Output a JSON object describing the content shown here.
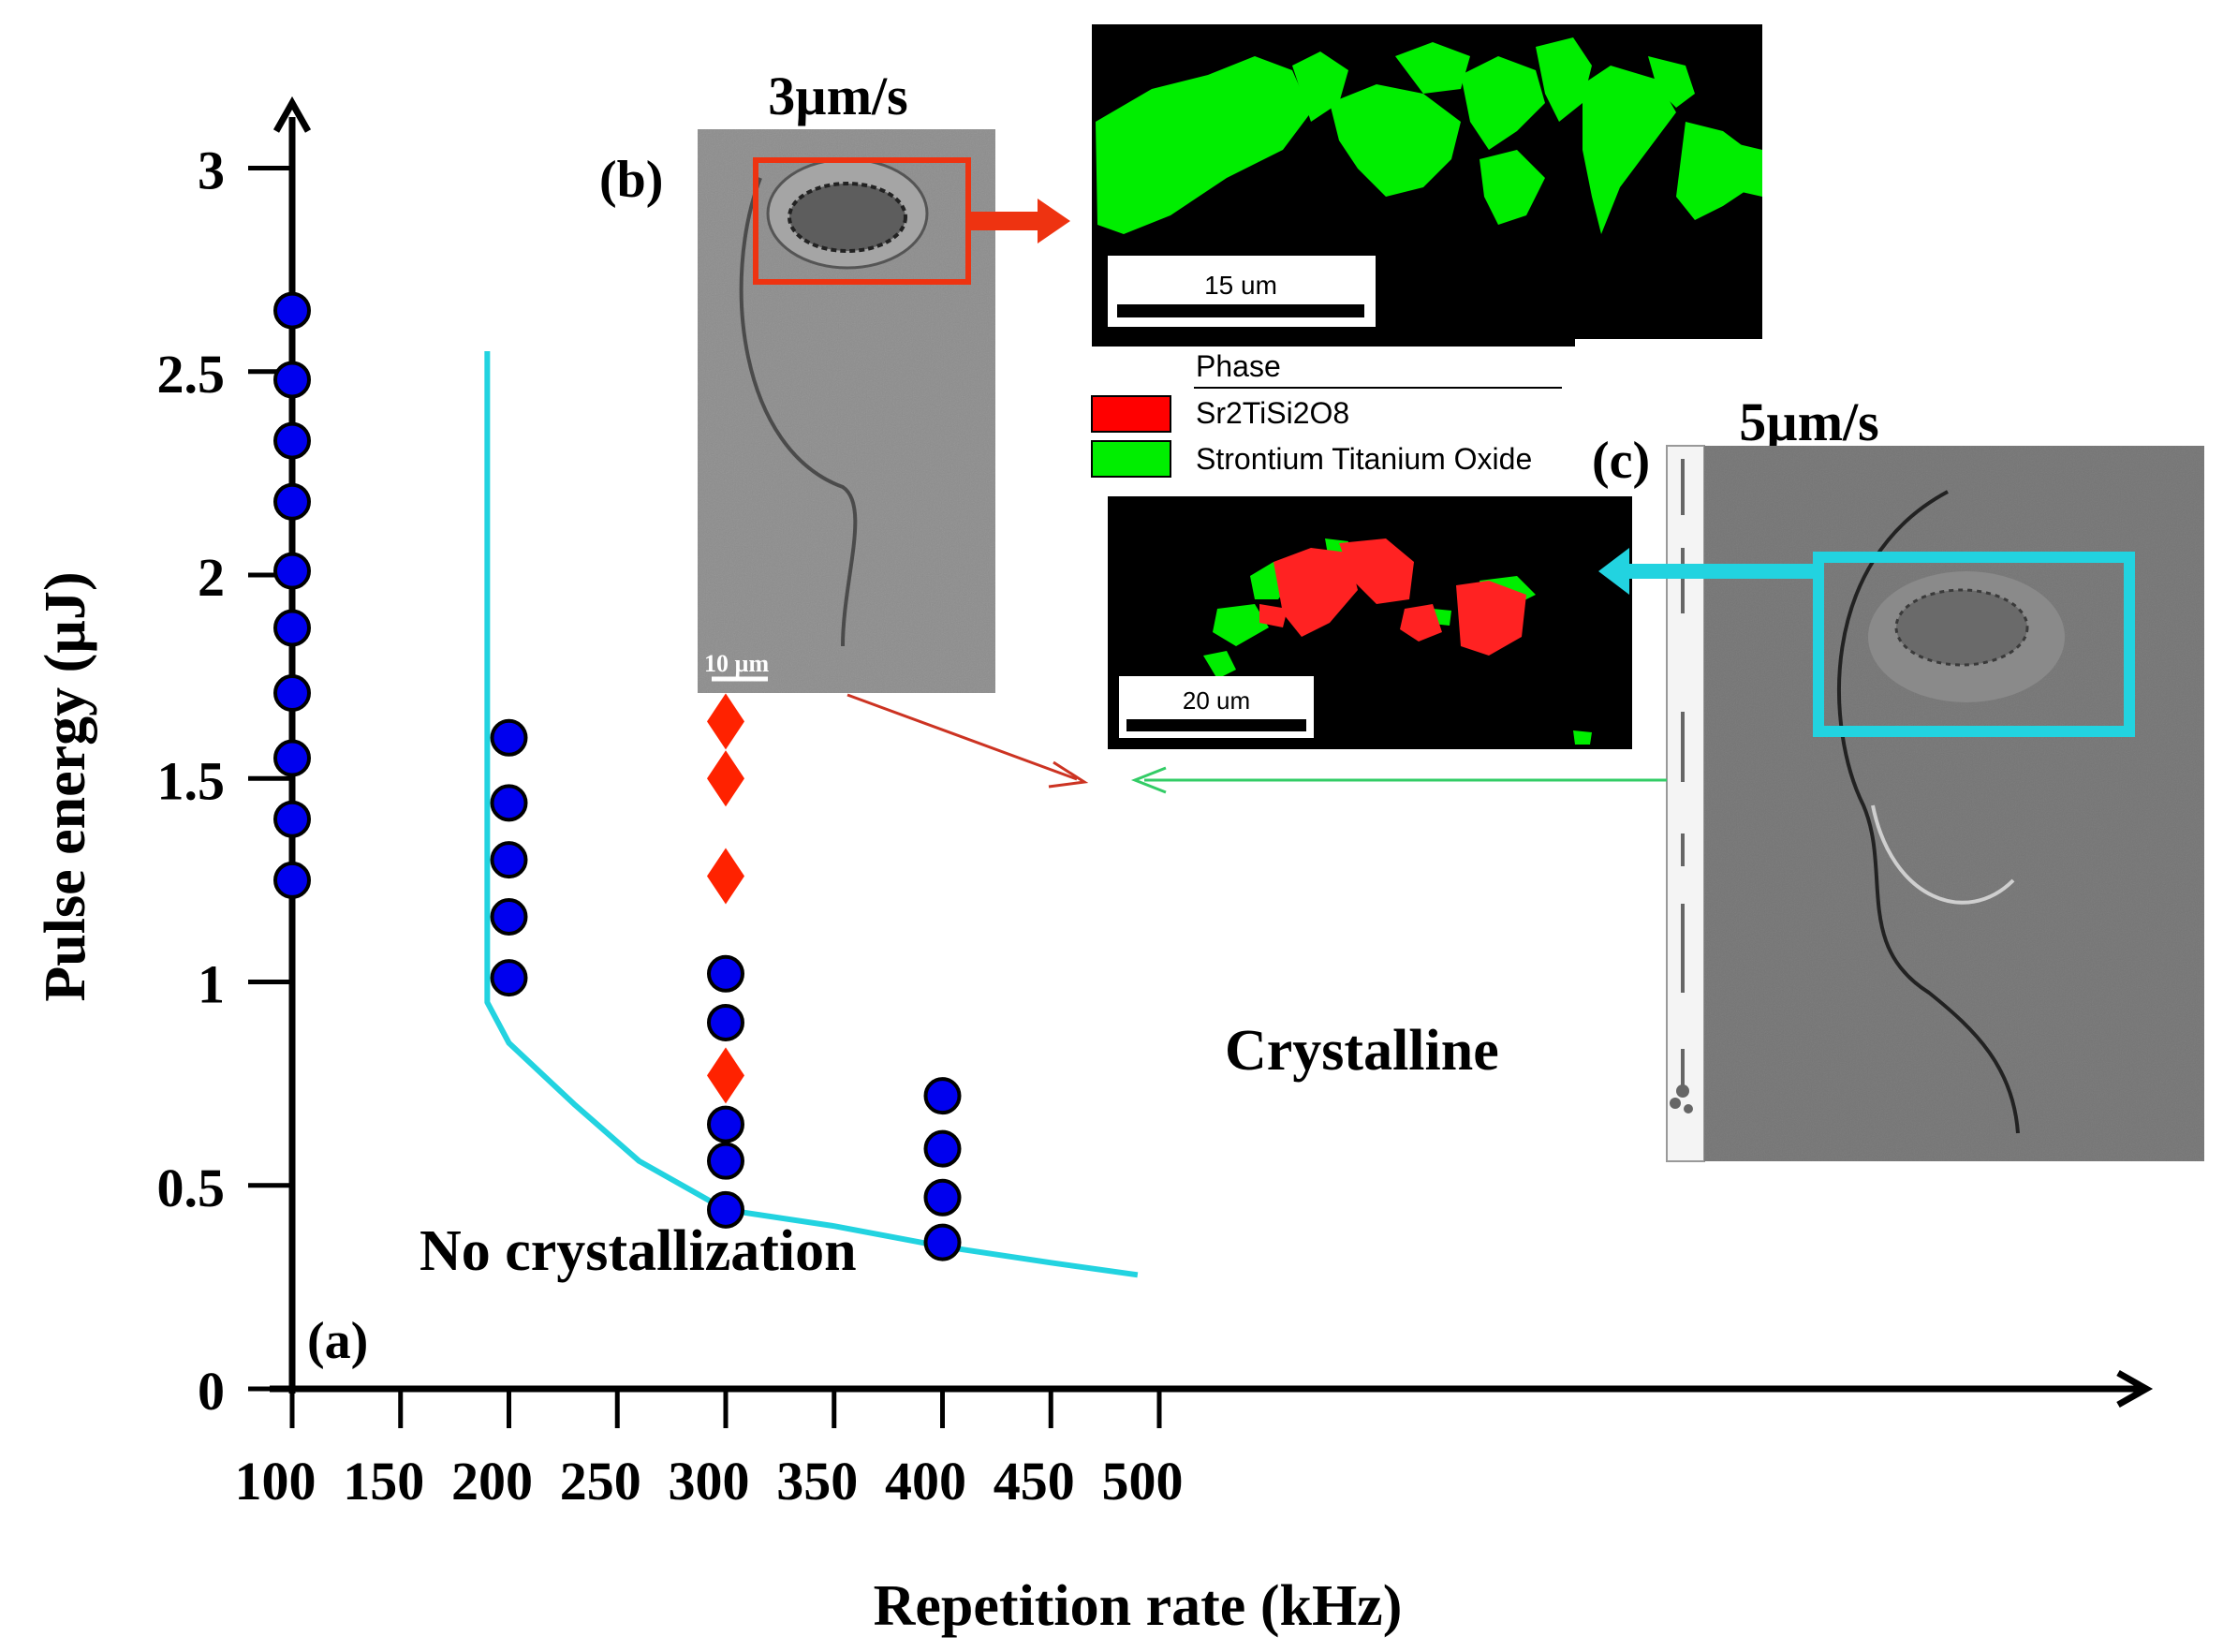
{
  "chart_data": {
    "type": "scatter",
    "xlabel": "Repetition rate (kHz)",
    "ylabel": "Pulse energy  (µJ)",
    "x_ticks": [
      "100",
      "150",
      "200",
      "250",
      "300",
      "350",
      "400",
      "450",
      "500"
    ],
    "y_ticks": [
      "0",
      "0.5",
      "1",
      "1.5",
      "2",
      "2.5",
      "3"
    ],
    "xlim": [
      100,
      500
    ],
    "ylim": [
      0,
      3.3
    ],
    "series": [
      {
        "marker": "circle",
        "color": "#0000ee",
        "points": [
          [
            100,
            2.65
          ],
          [
            100,
            2.48
          ],
          [
            100,
            2.33
          ],
          [
            100,
            2.18
          ],
          [
            100,
            2.01
          ],
          [
            100,
            1.87
          ],
          [
            100,
            1.71
          ],
          [
            100,
            1.55
          ],
          [
            100,
            1.4
          ],
          [
            100,
            1.25
          ],
          [
            200,
            1.6
          ],
          [
            200,
            1.44
          ],
          [
            200,
            1.3
          ],
          [
            200,
            1.16
          ],
          [
            200,
            1.01
          ],
          [
            300,
            1.02
          ],
          [
            300,
            0.9
          ],
          [
            300,
            0.65
          ],
          [
            300,
            0.56
          ],
          [
            300,
            0.44
          ],
          [
            400,
            0.72
          ],
          [
            400,
            0.59
          ],
          [
            400,
            0.47
          ],
          [
            400,
            0.36
          ]
        ]
      },
      {
        "marker": "diamond",
        "color": "#ff2200",
        "points": [
          [
            300,
            1.64
          ],
          [
            300,
            1.5
          ],
          [
            300,
            1.26
          ],
          [
            300,
            0.77
          ]
        ]
      }
    ],
    "boundary": {
      "color": "#22d3e0",
      "points": [
        [
          190,
          2.55
        ],
        [
          190,
          0.95
        ],
        [
          200,
          0.85
        ],
        [
          230,
          0.7
        ],
        [
          260,
          0.56
        ],
        [
          300,
          0.44
        ],
        [
          350,
          0.4
        ],
        [
          400,
          0.35
        ],
        [
          450,
          0.31
        ],
        [
          490,
          0.28
        ]
      ]
    },
    "annotations": {
      "region_low": "No crystallization",
      "region_high": "Crystalline",
      "panel_a": "(a)"
    }
  },
  "inset_b": {
    "label": "(b)",
    "speed": "3µm/s",
    "scale_bar": "10 µm"
  },
  "inset_c": {
    "label": "(c)",
    "speed": "5µm/s"
  },
  "phase_map_top": {
    "scale_bar": "15 um"
  },
  "phase_map_bottom": {
    "scale_bar": "20 um"
  },
  "legend": {
    "title": "Phase",
    "items": [
      {
        "label": "Sr2TiSi2O8",
        "color": "#ff0000"
      },
      {
        "label": "Strontium Titanium Oxide",
        "color": "#00ee00"
      }
    ]
  }
}
